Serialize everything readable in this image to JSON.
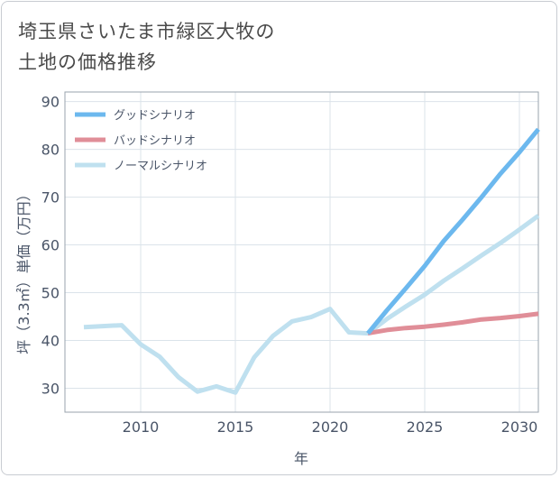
{
  "title_line1": "埼玉県さいたま市緑区大牧の",
  "title_line2": "土地の価格推移",
  "chart_data": {
    "type": "line",
    "title": "埼玉県さいたま市緑区大牧の土地の価格推移",
    "xlabel": "年",
    "ylabel": "坪（3.3㎡）単価（万円）",
    "xlim": [
      2006,
      2031
    ],
    "ylim": [
      25,
      92
    ],
    "x_ticks": [
      2010,
      2015,
      2020,
      2025,
      2030
    ],
    "y_ticks": [
      30,
      40,
      50,
      60,
      70,
      80,
      90
    ],
    "grid": true,
    "legend_position": "top-left",
    "series": [
      {
        "name": "グッドシナリオ",
        "color": "#6cb8ee",
        "x": [
          2022,
          2023,
          2024,
          2025,
          2026,
          2027,
          2028,
          2029,
          2030,
          2031
        ],
        "values": [
          41.5,
          46.3,
          50.9,
          55.6,
          60.8,
          65.3,
          70.0,
          74.9,
          79.4,
          84.2
        ]
      },
      {
        "name": "バッドシナリオ",
        "color": "#e08e98",
        "x": [
          2022,
          2023,
          2024,
          2025,
          2026,
          2027,
          2028,
          2029,
          2030,
          2031
        ],
        "values": [
          41.5,
          42.2,
          42.6,
          42.9,
          43.3,
          43.8,
          44.4,
          44.7,
          45.1,
          45.6
        ]
      },
      {
        "name": "ノーマルシナリオ",
        "color": "#bfe0ef",
        "x": [
          2007,
          2008,
          2009,
          2010,
          2011,
          2012,
          2013,
          2014,
          2015,
          2016,
          2017,
          2018,
          2019,
          2020,
          2021,
          2022,
          2023,
          2024,
          2025,
          2026,
          2027,
          2028,
          2029,
          2030,
          2031
        ],
        "values": [
          42.8,
          43.0,
          43.2,
          39.2,
          36.6,
          32.3,
          29.3,
          30.4,
          29.1,
          36.5,
          41.0,
          44.0,
          44.9,
          46.6,
          41.7,
          41.5,
          44.5,
          47.1,
          49.6,
          52.5,
          55.1,
          57.8,
          60.4,
          63.2,
          66.1
        ]
      }
    ]
  }
}
